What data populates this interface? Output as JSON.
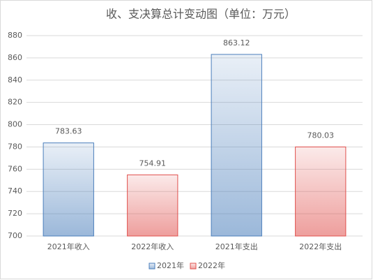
{
  "chart_data": {
    "type": "bar",
    "title": "收、支决算总计变动图（单位：万元）",
    "categories": [
      "2021年收入",
      "2022年收入",
      "2021年支出",
      "2022年支出"
    ],
    "series": [
      {
        "name": "2021年",
        "color": "#4a7ebb",
        "values": [
          783.63,
          null,
          863.12,
          null
        ]
      },
      {
        "name": "2022年",
        "color": "#e0504d",
        "values": [
          null,
          754.91,
          null,
          780.03
        ]
      }
    ],
    "ylim": [
      700,
      880
    ],
    "yticks": [
      700,
      720,
      740,
      760,
      780,
      800,
      820,
      840,
      860,
      880
    ],
    "grid": true
  }
}
